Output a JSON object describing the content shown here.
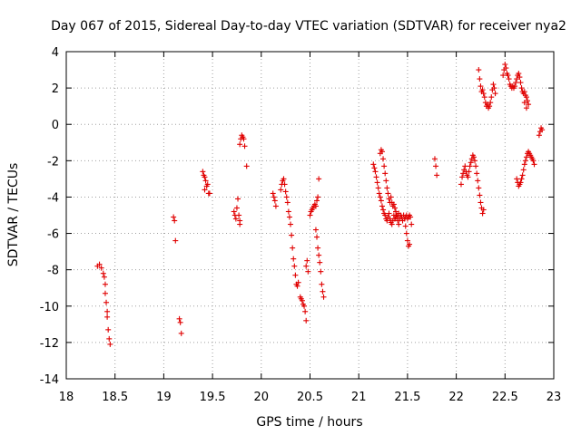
{
  "chart_data": {
    "type": "scatter",
    "title": "Day 067 of 2015, Sidereal Day-to-day VTEC variation (SDTVAR) for receiver nya2",
    "xlabel": "GPS time / hours",
    "ylabel": "SDTVAR / TECUs",
    "xlim": [
      18,
      23
    ],
    "ylim": [
      -14,
      4
    ],
    "xticks": [
      "18",
      "18.5",
      "19",
      "19.5",
      "20",
      "20.5",
      "21",
      "21.5",
      "22",
      "22.5",
      "23"
    ],
    "yticks": [
      "-14",
      "-12",
      "-10",
      "-8",
      "-6",
      "-4",
      "-2",
      "0",
      "2",
      "4"
    ],
    "grid": true,
    "marker": "+",
    "color": "#e00000",
    "segments": [
      [
        [
          18.32,
          -7.8
        ],
        [
          18.34,
          -7.7
        ],
        [
          18.36,
          -7.9
        ],
        [
          18.38,
          -8.2
        ],
        [
          18.39,
          -8.4
        ],
        [
          18.4,
          -8.8
        ],
        [
          18.4,
          -9.3
        ],
        [
          18.41,
          -9.8
        ],
        [
          18.42,
          -10.3
        ],
        [
          18.42,
          -10.6
        ],
        [
          18.43,
          -11.3
        ],
        [
          18.44,
          -11.8
        ],
        [
          18.45,
          -12.1
        ]
      ],
      [
        [
          19.1,
          -5.1
        ],
        [
          19.11,
          -5.3
        ],
        [
          19.12,
          -6.4
        ]
      ],
      [
        [
          19.16,
          -10.7
        ],
        [
          19.17,
          -10.9
        ],
        [
          19.18,
          -11.5
        ]
      ],
      [
        [
          19.4,
          -2.6
        ],
        [
          19.41,
          -2.8
        ],
        [
          19.42,
          -2.9
        ],
        [
          19.43,
          -3.1
        ],
        [
          19.44,
          -3.4
        ],
        [
          19.45,
          -3.3
        ],
        [
          19.46,
          -3.8
        ],
        [
          19.47,
          -3.8
        ]
      ],
      [
        [
          19.42,
          -3.6
        ]
      ],
      [
        [
          19.72,
          -4.8
        ],
        [
          19.73,
          -5.0
        ],
        [
          19.74,
          -5.2
        ],
        [
          19.75,
          -4.6
        ],
        [
          19.76,
          -4.1
        ],
        [
          19.77,
          -5.0
        ],
        [
          19.78,
          -5.3
        ],
        [
          19.78,
          -5.5
        ]
      ],
      [
        [
          19.78,
          -1.1
        ],
        [
          19.79,
          -0.8
        ],
        [
          19.8,
          -0.6
        ],
        [
          19.81,
          -0.7
        ],
        [
          19.82,
          -0.8
        ],
        [
          19.83,
          -1.2
        ],
        [
          19.85,
          -2.3
        ]
      ],
      [
        [
          20.12,
          -3.8
        ],
        [
          20.13,
          -4.0
        ],
        [
          20.14,
          -4.2
        ],
        [
          20.15,
          -4.5
        ]
      ],
      [
        [
          20.2,
          -3.6
        ],
        [
          20.21,
          -3.3
        ],
        [
          20.22,
          -3.1
        ],
        [
          20.23,
          -3.0
        ],
        [
          20.24,
          -3.3
        ],
        [
          20.25,
          -3.7
        ],
        [
          20.26,
          -4.0
        ],
        [
          20.27,
          -4.3
        ],
        [
          20.28,
          -4.8
        ],
        [
          20.29,
          -5.1
        ],
        [
          20.3,
          -5.5
        ],
        [
          20.31,
          -6.1
        ],
        [
          20.32,
          -6.8
        ],
        [
          20.33,
          -7.4
        ],
        [
          20.34,
          -7.8
        ],
        [
          20.35,
          -8.3
        ],
        [
          20.36,
          -8.8
        ],
        [
          20.37,
          -8.9
        ],
        [
          20.38,
          -8.7
        ]
      ],
      [
        [
          20.4,
          -9.5
        ],
        [
          20.41,
          -9.6
        ],
        [
          20.42,
          -9.7
        ],
        [
          20.43,
          -9.9
        ],
        [
          20.44,
          -10.0
        ],
        [
          20.45,
          -10.3
        ],
        [
          20.46,
          -10.8
        ]
      ],
      [
        [
          20.46,
          -7.8
        ],
        [
          20.47,
          -7.5
        ],
        [
          20.48,
          -8.1
        ]
      ],
      [
        [
          20.5,
          -5.0
        ],
        [
          20.51,
          -4.8
        ],
        [
          20.52,
          -4.7
        ],
        [
          20.53,
          -4.6
        ],
        [
          20.54,
          -4.5
        ],
        [
          20.55,
          -4.4
        ],
        [
          20.56,
          -4.5
        ],
        [
          20.57,
          -4.2
        ],
        [
          20.58,
          -4.0
        ],
        [
          20.59,
          -3.0
        ]
      ],
      [
        [
          20.56,
          -5.8
        ],
        [
          20.57,
          -6.2
        ],
        [
          20.58,
          -6.8
        ],
        [
          20.59,
          -7.2
        ],
        [
          20.6,
          -7.6
        ],
        [
          20.61,
          -8.1
        ],
        [
          20.62,
          -8.8
        ],
        [
          20.63,
          -9.2
        ],
        [
          20.64,
          -9.5
        ]
      ],
      [
        [
          21.15,
          -2.2
        ],
        [
          21.16,
          -2.4
        ],
        [
          21.17,
          -2.6
        ],
        [
          21.18,
          -2.9
        ],
        [
          21.19,
          -3.2
        ],
        [
          21.2,
          -3.5
        ],
        [
          21.21,
          -3.8
        ],
        [
          21.22,
          -4.0
        ],
        [
          21.23,
          -4.2
        ],
        [
          21.24,
          -4.5
        ],
        [
          21.25,
          -4.7
        ],
        [
          21.26,
          -4.9
        ],
        [
          21.27,
          -5.0
        ],
        [
          21.28,
          -5.2
        ],
        [
          21.29,
          -5.3
        ],
        [
          21.3,
          -5.1
        ],
        [
          21.31,
          -4.9
        ],
        [
          21.32,
          -5.2
        ],
        [
          21.33,
          -5.4
        ],
        [
          21.34,
          -5.5
        ],
        [
          21.35,
          -5.3
        ],
        [
          21.36,
          -5.0
        ],
        [
          21.37,
          -5.2
        ],
        [
          21.38,
          -5.1
        ],
        [
          21.39,
          -5.0
        ],
        [
          21.4,
          -5.3
        ],
        [
          21.41,
          -5.5
        ]
      ],
      [
        [
          21.22,
          -1.6
        ],
        [
          21.23,
          -1.4
        ],
        [
          21.24,
          -1.5
        ],
        [
          21.25,
          -1.9
        ],
        [
          21.26,
          -2.3
        ],
        [
          21.27,
          -2.7
        ],
        [
          21.28,
          -3.1
        ],
        [
          21.29,
          -3.5
        ],
        [
          21.3,
          -3.8
        ],
        [
          21.31,
          -4.1
        ],
        [
          21.32,
          -4.3
        ],
        [
          21.33,
          -4.0
        ],
        [
          21.34,
          -4.3
        ],
        [
          21.35,
          -4.5
        ],
        [
          21.36,
          -4.4
        ],
        [
          21.37,
          -4.6
        ],
        [
          21.38,
          -4.8
        ],
        [
          21.39,
          -5.0
        ],
        [
          21.4,
          -5.1
        ],
        [
          21.41,
          -4.9
        ],
        [
          21.42,
          -5.2
        ],
        [
          21.43,
          -5.0
        ]
      ],
      [
        [
          21.44,
          -5.1
        ],
        [
          21.45,
          -5.3
        ],
        [
          21.46,
          -5.0
        ],
        [
          21.47,
          -5.2
        ],
        [
          21.48,
          -5.1
        ],
        [
          21.49,
          -5.0
        ],
        [
          21.5,
          -5.2
        ],
        [
          21.51,
          -5.1
        ],
        [
          21.52,
          -5.0
        ],
        [
          21.53,
          -5.1
        ],
        [
          21.54,
          -5.5
        ]
      ],
      [
        [
          21.48,
          -5.6
        ],
        [
          21.49,
          -6.0
        ],
        [
          21.5,
          -6.4
        ],
        [
          21.51,
          -6.7
        ],
        [
          21.52,
          -6.6
        ]
      ],
      [
        [
          21.78,
          -1.9
        ],
        [
          21.79,
          -2.3
        ],
        [
          21.8,
          -2.8
        ]
      ],
      [
        [
          22.05,
          -3.3
        ],
        [
          22.06,
          -2.9
        ],
        [
          22.07,
          -2.7
        ],
        [
          22.08,
          -2.5
        ],
        [
          22.09,
          -2.3
        ],
        [
          22.1,
          -2.6
        ],
        [
          22.11,
          -2.8
        ],
        [
          22.12,
          -2.9
        ],
        [
          22.13,
          -2.6
        ],
        [
          22.14,
          -2.3
        ],
        [
          22.15,
          -2.1
        ],
        [
          22.16,
          -1.9
        ],
        [
          22.17,
          -1.7
        ],
        [
          22.18,
          -1.8
        ],
        [
          22.19,
          -2.0
        ],
        [
          22.2,
          -2.3
        ],
        [
          22.21,
          -2.7
        ],
        [
          22.22,
          -3.1
        ],
        [
          22.23,
          -3.5
        ],
        [
          22.24,
          -3.9
        ],
        [
          22.25,
          -4.3
        ],
        [
          22.26,
          -4.6
        ],
        [
          22.27,
          -4.9
        ],
        [
          22.28,
          -4.7
        ]
      ],
      [
        [
          22.23,
          3.0
        ],
        [
          22.24,
          2.5
        ],
        [
          22.25,
          2.1
        ],
        [
          22.26,
          1.8
        ],
        [
          22.27,
          1.9
        ],
        [
          22.28,
          1.7
        ],
        [
          22.29,
          1.5
        ],
        [
          22.3,
          1.2
        ],
        [
          22.31,
          1.0
        ],
        [
          22.32,
          1.1
        ],
        [
          22.33,
          0.9
        ],
        [
          22.34,
          1.0
        ],
        [
          22.35,
          1.2
        ],
        [
          22.36,
          1.5
        ],
        [
          22.37,
          1.9
        ],
        [
          22.38,
          2.2
        ],
        [
          22.39,
          2.0
        ],
        [
          22.4,
          1.7
        ]
      ],
      [
        [
          22.48,
          2.7
        ],
        [
          22.49,
          3.0
        ],
        [
          22.5,
          3.3
        ],
        [
          22.51,
          3.1
        ],
        [
          22.52,
          2.8
        ],
        [
          22.53,
          2.7
        ],
        [
          22.54,
          2.5
        ],
        [
          22.55,
          2.2
        ],
        [
          22.56,
          2.1
        ],
        [
          22.57,
          2.0
        ],
        [
          22.58,
          2.1
        ],
        [
          22.59,
          2.0
        ],
        [
          22.6,
          2.1
        ],
        [
          22.61,
          2.3
        ],
        [
          22.62,
          2.5
        ],
        [
          22.63,
          2.7
        ],
        [
          22.64,
          2.8
        ],
        [
          22.65,
          2.6
        ],
        [
          22.66,
          2.3
        ],
        [
          22.67,
          2.0
        ],
        [
          22.68,
          1.8
        ],
        [
          22.69,
          1.7
        ],
        [
          22.7,
          1.8
        ],
        [
          22.71,
          1.6
        ],
        [
          22.72,
          1.5
        ],
        [
          22.73,
          1.3
        ],
        [
          22.74,
          1.1
        ],
        [
          22.7,
          1.2
        ],
        [
          22.72,
          0.9
        ]
      ],
      [
        [
          22.62,
          -3.0
        ],
        [
          22.63,
          -3.2
        ],
        [
          22.64,
          -3.4
        ],
        [
          22.65,
          -3.3
        ],
        [
          22.66,
          -3.2
        ],
        [
          22.67,
          -3.0
        ],
        [
          22.68,
          -2.8
        ],
        [
          22.69,
          -2.5
        ],
        [
          22.7,
          -2.2
        ],
        [
          22.71,
          -2.0
        ],
        [
          22.72,
          -1.8
        ],
        [
          22.73,
          -1.6
        ],
        [
          22.74,
          -1.5
        ],
        [
          22.75,
          -1.6
        ],
        [
          22.76,
          -1.7
        ],
        [
          22.77,
          -1.8
        ],
        [
          22.78,
          -1.9
        ],
        [
          22.79,
          -2.0
        ],
        [
          22.8,
          -2.2
        ]
      ],
      [
        [
          22.85,
          -0.6
        ],
        [
          22.86,
          -0.4
        ],
        [
          22.87,
          -0.2
        ],
        [
          22.88,
          -0.3
        ]
      ]
    ]
  }
}
